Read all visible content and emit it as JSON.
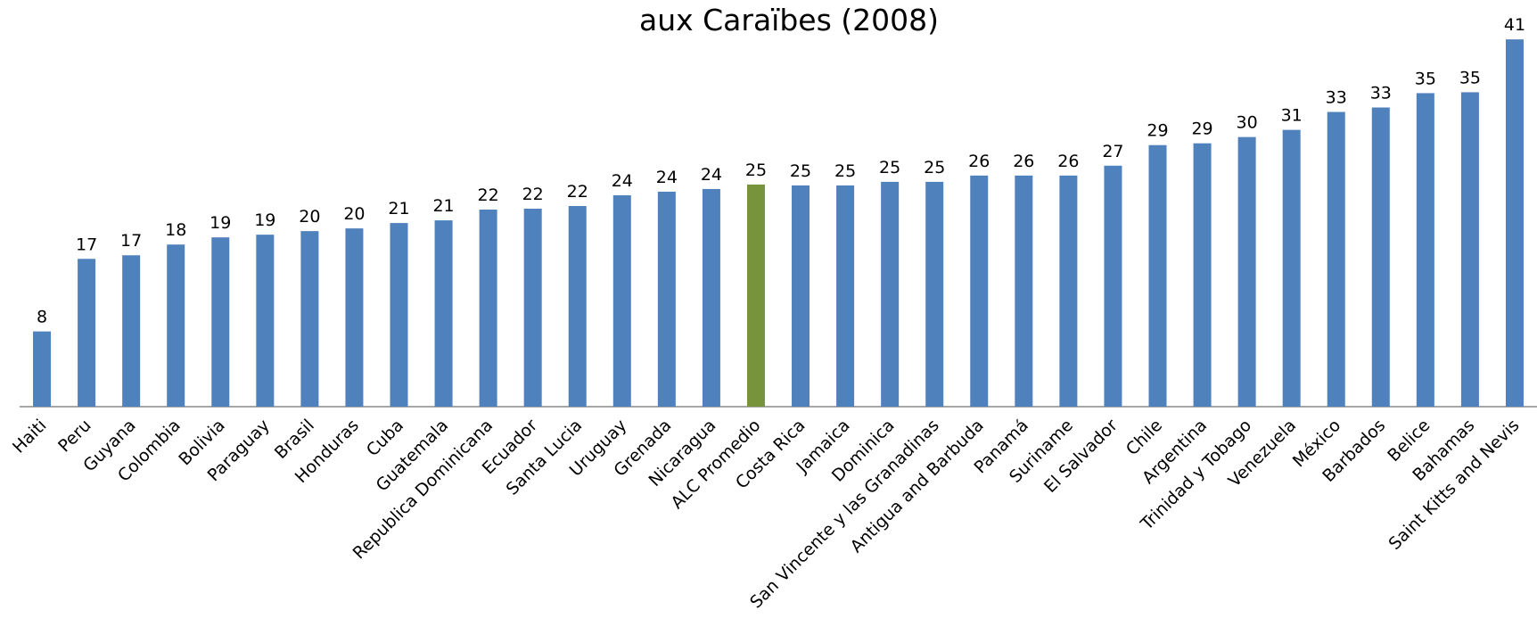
{
  "chart_data": {
    "type": "bar",
    "title": "aux Caraïbes (2008)",
    "categories": [
      "Haiti",
      "Peru",
      "Guyana",
      "Colombia",
      "Bolivia",
      "Paraguay",
      "Brasil",
      "Honduras",
      "Cuba",
      "Guatemala",
      "Republica Dominicana",
      "Ecuador",
      "Santa  Lucia",
      "Uruguay",
      "Grenada",
      "Nicaragua",
      "ALC Promedio",
      "Costa Rica",
      "Jamaica",
      "Dominica",
      "San Vincente y las Granadinas",
      "Antigua and Barbuda",
      "Panamá",
      "Suriname",
      "El Salvador",
      "Chile",
      "Argentina",
      "Trinidad y Tobago",
      "Venezuela",
      "México",
      "Barbados",
      "Belice",
      "Bahamas",
      "Saint Kitts and Nevis"
    ],
    "values": [
      8.4,
      16.5,
      16.9,
      18.1,
      18.9,
      19.2,
      19.6,
      19.9,
      20.5,
      20.8,
      22.0,
      22.1,
      22.4,
      23.6,
      24.0,
      24.3,
      24.8,
      24.7,
      24.7,
      25.1,
      25.1,
      25.8,
      25.8,
      25.8,
      26.9,
      29.2,
      29.4,
      30.1,
      30.9,
      32.9,
      33.4,
      35.0,
      35.1,
      41.0
    ],
    "value_labels": [
      "8",
      "17",
      "17",
      "18",
      "19",
      "19",
      "20",
      "20",
      "21",
      "21",
      "22",
      "22",
      "22",
      "24",
      "24",
      "24",
      "25",
      "25",
      "25",
      "25",
      "25",
      "26",
      "26",
      "26",
      "27",
      "29",
      "29",
      "30",
      "31",
      "33",
      "33",
      "35",
      "35",
      "41"
    ],
    "colors": [
      "#4f81bd",
      "#4f81bd",
      "#4f81bd",
      "#4f81bd",
      "#4f81bd",
      "#4f81bd",
      "#4f81bd",
      "#4f81bd",
      "#4f81bd",
      "#4f81bd",
      "#4f81bd",
      "#4f81bd",
      "#4f81bd",
      "#4f81bd",
      "#4f81bd",
      "#4f81bd",
      "#77933c",
      "#4f81bd",
      "#4f81bd",
      "#4f81bd",
      "#4f81bd",
      "#4f81bd",
      "#4f81bd",
      "#4f81bd",
      "#4f81bd",
      "#4f81bd",
      "#4f81bd",
      "#4f81bd",
      "#4f81bd",
      "#4f81bd",
      "#4f81bd",
      "#4f81bd",
      "#4f81bd",
      "#4f81bd"
    ],
    "ylim": [
      0,
      45
    ]
  }
}
